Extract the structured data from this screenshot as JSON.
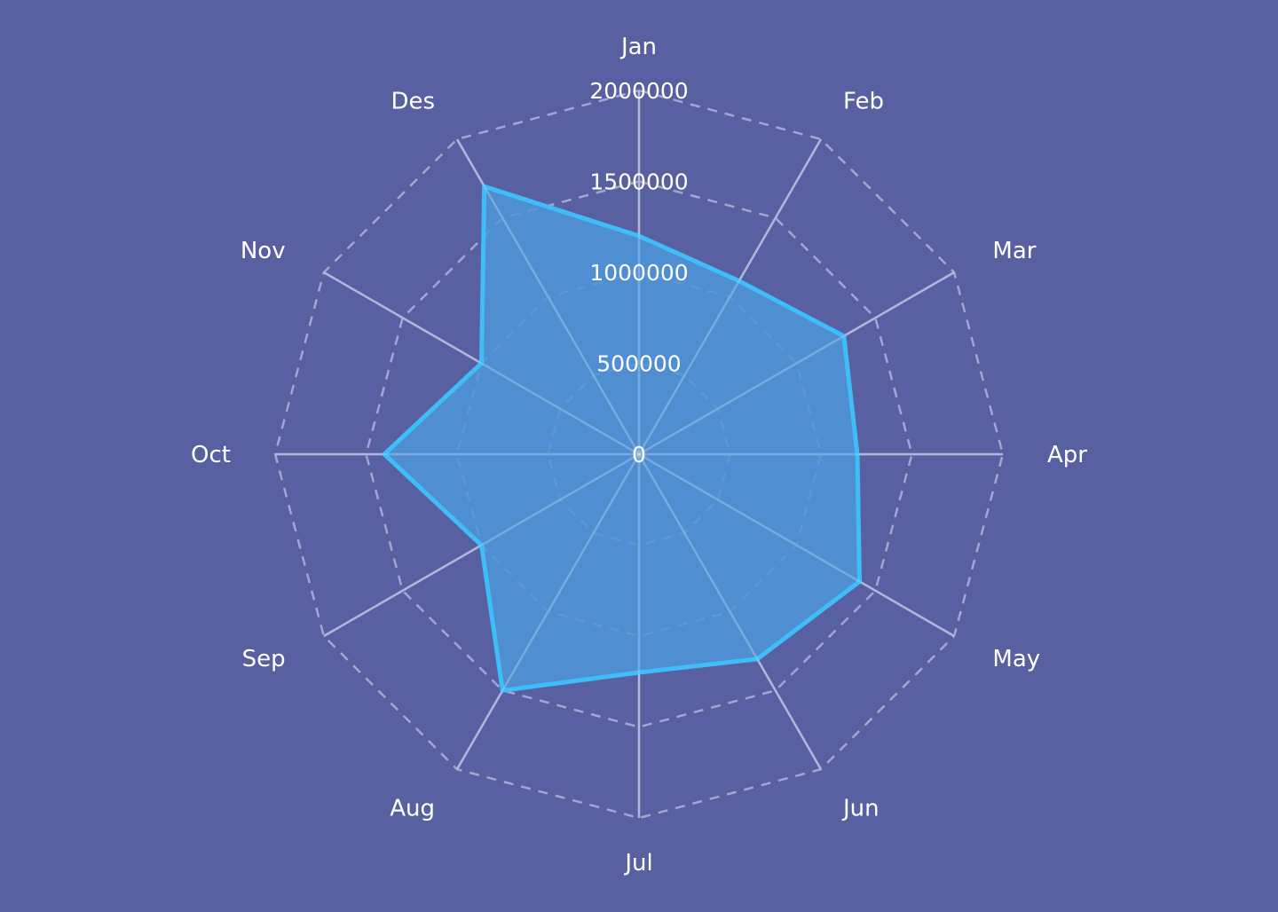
{
  "colors": {
    "background": "#5960a2",
    "grid": "#a3a6d3",
    "series_line": "#3ebdf8",
    "series_fill": "#4d97d8",
    "text": "#ffffff"
  },
  "chart_data": {
    "type": "radar",
    "title": "",
    "categories": [
      "Jan",
      "Feb",
      "Mar",
      "Apr",
      "May",
      "Jun",
      "Jul",
      "Aug",
      "Sep",
      "Oct",
      "Nov",
      "Des"
    ],
    "series": [
      {
        "values": [
          1200000,
          1100000,
          1300000,
          1200000,
          1400000,
          1300000,
          1200000,
          1500000,
          1000000,
          1400000,
          1000000,
          1700000
        ]
      }
    ],
    "radial_ticks": [
      "0",
      "500000",
      "1000000",
      "1500000",
      "2000000"
    ],
    "rlim": [
      0,
      2000000
    ],
    "grid": true,
    "grid_shape": "polygon",
    "legend": "none"
  }
}
